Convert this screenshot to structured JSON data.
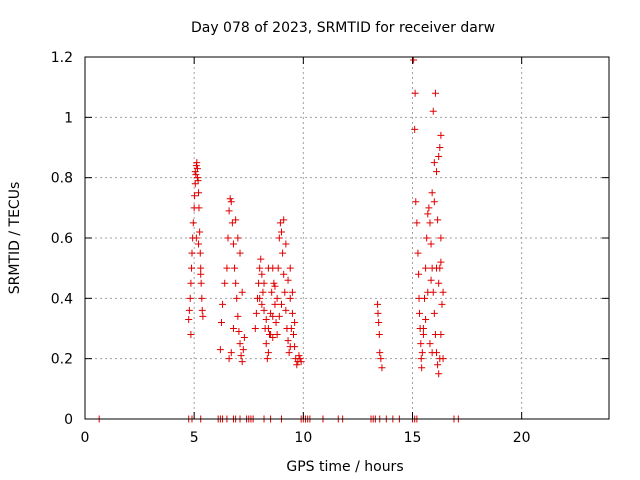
{
  "chart_data": {
    "type": "scatter",
    "title": "Day 078 of 2023, SRMTID for receiver darw",
    "xlabel": "GPS time / hours",
    "ylabel": "SRMTID / TECUs",
    "xlim": [
      0,
      24
    ],
    "ylim": [
      0,
      1.2
    ],
    "xticks": [
      0,
      5,
      10,
      15,
      20
    ],
    "xtick_labels": [
      "0",
      "5",
      "10",
      "15",
      "20"
    ],
    "yticks": [
      0,
      0.2,
      0.4,
      0.6,
      0.8,
      1,
      1.2
    ],
    "ytick_labels": [
      "0",
      "0.2",
      "0.4",
      "0.6",
      "0.8",
      "1",
      "1.2"
    ],
    "grid": true,
    "marker": "+",
    "colors": {
      "points": "#e00000",
      "axes": "#000000",
      "grid": "#a0a0a0"
    },
    "series": [
      {
        "points": [
          [
            0.65,
            0
          ],
          [
            4.75,
            0
          ],
          [
            4.9,
            0
          ],
          [
            5.3,
            0
          ],
          [
            6.1,
            0
          ],
          [
            6.2,
            0
          ],
          [
            6.3,
            0
          ],
          [
            6.5,
            0
          ],
          [
            6.8,
            0
          ],
          [
            6.9,
            0
          ],
          [
            7.1,
            0
          ],
          [
            7.4,
            0
          ],
          [
            7.5,
            0
          ],
          [
            7.6,
            0
          ],
          [
            7.7,
            0
          ],
          [
            8.2,
            0
          ],
          [
            8.5,
            0
          ],
          [
            9.0,
            0
          ],
          [
            9.9,
            0
          ],
          [
            10.0,
            0
          ],
          [
            10.1,
            0
          ],
          [
            10.2,
            0
          ],
          [
            10.3,
            0
          ],
          [
            10.9,
            0
          ],
          [
            11.6,
            0
          ],
          [
            11.8,
            0
          ],
          [
            13.1,
            0
          ],
          [
            13.2,
            0
          ],
          [
            13.3,
            0
          ],
          [
            13.5,
            0
          ],
          [
            13.8,
            0
          ],
          [
            14.1,
            0
          ],
          [
            14.4,
            0
          ],
          [
            15.0,
            0
          ],
          [
            15.1,
            0
          ],
          [
            15.2,
            0
          ],
          [
            16.9,
            0
          ],
          [
            17.1,
            0
          ],
          [
            4.75,
            0.33
          ],
          [
            4.78,
            0.36
          ],
          [
            4.82,
            0.4
          ],
          [
            4.85,
            0.45
          ],
          [
            4.88,
            0.5
          ],
          [
            4.9,
            0.55
          ],
          [
            4.93,
            0.6
          ],
          [
            4.96,
            0.65
          ],
          [
            5.0,
            0.7
          ],
          [
            5.02,
            0.74
          ],
          [
            5.05,
            0.78
          ],
          [
            5.08,
            0.81
          ],
          [
            5.1,
            0.84
          ],
          [
            5.12,
            0.85
          ],
          [
            5.15,
            0.83
          ],
          [
            5.18,
            0.79
          ],
          [
            5.2,
            0.75
          ],
          [
            5.22,
            0.7
          ],
          [
            5.25,
            0.62
          ],
          [
            5.28,
            0.55
          ],
          [
            5.3,
            0.5
          ],
          [
            5.32,
            0.45
          ],
          [
            5.35,
            0.4
          ],
          [
            5.37,
            0.36
          ],
          [
            5.4,
            0.34
          ],
          [
            5.1,
            0.6
          ],
          [
            5.2,
            0.58
          ],
          [
            5.3,
            0.48
          ],
          [
            4.85,
            0.28
          ],
          [
            5.05,
            0.82
          ],
          [
            5.15,
            0.8
          ],
          [
            6.2,
            0.23
          ],
          [
            6.25,
            0.32
          ],
          [
            6.3,
            0.38
          ],
          [
            6.4,
            0.45
          ],
          [
            6.5,
            0.5
          ],
          [
            6.55,
            0.6
          ],
          [
            6.6,
            0.69
          ],
          [
            6.65,
            0.73
          ],
          [
            6.7,
            0.72
          ],
          [
            6.75,
            0.65
          ],
          [
            6.8,
            0.58
          ],
          [
            6.85,
            0.5
          ],
          [
            6.9,
            0.45
          ],
          [
            6.95,
            0.4
          ],
          [
            7.0,
            0.34
          ],
          [
            7.05,
            0.29
          ],
          [
            7.1,
            0.25
          ],
          [
            7.15,
            0.21
          ],
          [
            7.2,
            0.19
          ],
          [
            7.25,
            0.23
          ],
          [
            7.3,
            0.27
          ],
          [
            6.6,
            0.2
          ],
          [
            6.7,
            0.22
          ],
          [
            6.8,
            0.3
          ],
          [
            7.0,
            0.6
          ],
          [
            7.1,
            0.55
          ],
          [
            6.9,
            0.66
          ],
          [
            7.2,
            0.42
          ],
          [
            7.8,
            0.3
          ],
          [
            7.85,
            0.35
          ],
          [
            7.9,
            0.4
          ],
          [
            7.95,
            0.45
          ],
          [
            8.0,
            0.5
          ],
          [
            8.05,
            0.53
          ],
          [
            8.1,
            0.48
          ],
          [
            8.15,
            0.42
          ],
          [
            8.2,
            0.36
          ],
          [
            8.25,
            0.3
          ],
          [
            8.3,
            0.25
          ],
          [
            8.35,
            0.2
          ],
          [
            8.4,
            0.22
          ],
          [
            8.45,
            0.28
          ],
          [
            8.5,
            0.35
          ],
          [
            8.55,
            0.42
          ],
          [
            8.6,
            0.5
          ],
          [
            8.65,
            0.45
          ],
          [
            8.7,
            0.38
          ],
          [
            8.75,
            0.32
          ],
          [
            8.8,
            0.4
          ],
          [
            8.85,
            0.5
          ],
          [
            8.9,
            0.6
          ],
          [
            8.95,
            0.65
          ],
          [
            9.0,
            0.62
          ],
          [
            9.05,
            0.55
          ],
          [
            9.1,
            0.48
          ],
          [
            9.15,
            0.42
          ],
          [
            9.2,
            0.36
          ],
          [
            9.25,
            0.3
          ],
          [
            9.3,
            0.26
          ],
          [
            9.35,
            0.22
          ],
          [
            9.4,
            0.24
          ],
          [
            9.45,
            0.3
          ],
          [
            9.5,
            0.35
          ],
          [
            9.55,
            0.28
          ],
          [
            9.6,
            0.24
          ],
          [
            9.65,
            0.2
          ],
          [
            9.7,
            0.18
          ],
          [
            9.75,
            0.19
          ],
          [
            9.8,
            0.21
          ],
          [
            9.85,
            0.2
          ],
          [
            9.9,
            0.19
          ],
          [
            9.3,
            0.46
          ],
          [
            9.4,
            0.4
          ],
          [
            8.0,
            0.4
          ],
          [
            8.1,
            0.38
          ],
          [
            8.3,
            0.33
          ],
          [
            8.4,
            0.3
          ],
          [
            8.5,
            0.28
          ],
          [
            8.6,
            0.34
          ],
          [
            8.7,
            0.44
          ],
          [
            8.9,
            0.34
          ],
          [
            9.0,
            0.38
          ],
          [
            9.1,
            0.66
          ],
          [
            9.2,
            0.58
          ],
          [
            8.2,
            0.45
          ],
          [
            8.4,
            0.5
          ],
          [
            8.6,
            0.27
          ],
          [
            9.5,
            0.42
          ],
          [
            9.6,
            0.32
          ],
          [
            8.8,
            0.28
          ],
          [
            9.4,
            0.5
          ],
          [
            13.4,
            0.38
          ],
          [
            13.42,
            0.35
          ],
          [
            13.45,
            0.32
          ],
          [
            13.48,
            0.28
          ],
          [
            13.5,
            0.22
          ],
          [
            13.55,
            0.2
          ],
          [
            13.6,
            0.17
          ],
          [
            15.05,
            1.19
          ],
          [
            15.12,
            1.08
          ],
          [
            15.1,
            0.96
          ],
          [
            15.15,
            0.72
          ],
          [
            15.2,
            0.65
          ],
          [
            15.25,
            0.55
          ],
          [
            15.28,
            0.48
          ],
          [
            15.3,
            0.4
          ],
          [
            15.32,
            0.35
          ],
          [
            15.35,
            0.3
          ],
          [
            15.38,
            0.25
          ],
          [
            15.4,
            0.2
          ],
          [
            15.42,
            0.17
          ],
          [
            15.45,
            0.22
          ],
          [
            15.5,
            0.3
          ],
          [
            15.55,
            0.4
          ],
          [
            15.6,
            0.5
          ],
          [
            15.65,
            0.6
          ],
          [
            15.7,
            0.68
          ],
          [
            15.75,
            0.7
          ],
          [
            15.8,
            0.65
          ],
          [
            15.85,
            0.58
          ],
          [
            15.9,
            0.5
          ],
          [
            15.95,
            0.42
          ],
          [
            16.0,
            0.35
          ],
          [
            16.05,
            0.28
          ],
          [
            16.1,
            0.22
          ],
          [
            16.15,
            0.18
          ],
          [
            16.2,
            0.15
          ],
          [
            16.25,
            0.2
          ],
          [
            16.3,
            0.28
          ],
          [
            16.35,
            0.38
          ],
          [
            16.4,
            0.42
          ],
          [
            15.95,
            1.02
          ],
          [
            16.05,
            1.08
          ],
          [
            16.3,
            0.94
          ],
          [
            16.25,
            0.9
          ],
          [
            16.2,
            0.87
          ],
          [
            16.0,
            0.85
          ],
          [
            16.1,
            0.82
          ],
          [
            15.9,
            0.75
          ],
          [
            16.0,
            0.72
          ],
          [
            16.15,
            0.66
          ],
          [
            16.3,
            0.6
          ],
          [
            16.25,
            0.5
          ],
          [
            16.2,
            0.45
          ],
          [
            15.7,
            0.42
          ],
          [
            15.6,
            0.33
          ],
          [
            15.5,
            0.28
          ],
          [
            15.8,
            0.25
          ],
          [
            15.9,
            0.22
          ],
          [
            15.85,
            0.46
          ],
          [
            16.1,
            0.5
          ],
          [
            16.3,
            0.52
          ],
          [
            16.4,
            0.2
          ]
        ]
      }
    ]
  }
}
